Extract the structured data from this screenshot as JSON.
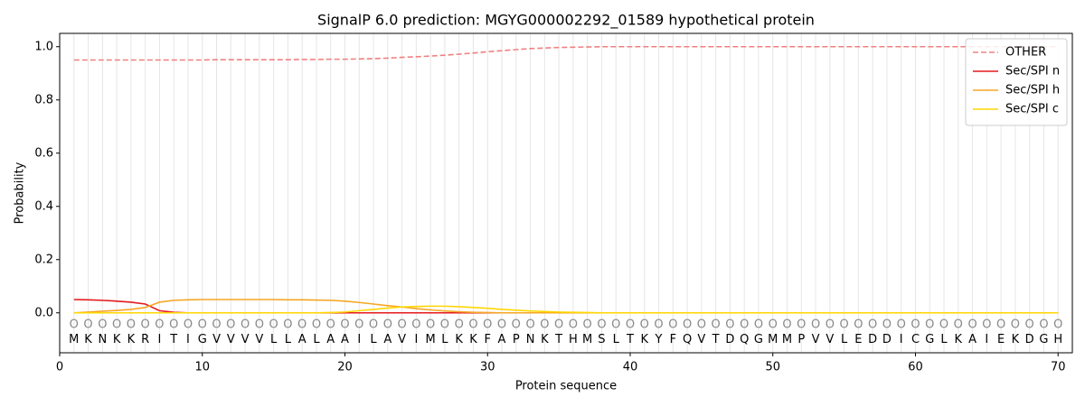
{
  "chart_data": {
    "type": "line",
    "title": "SignalP 6.0 prediction: MGYG000002292_01589 hypothetical protein",
    "xlabel": "Protein sequence",
    "ylabel": "Probability",
    "xlim": [
      0,
      71
    ],
    "ylim": [
      -0.15,
      1.05
    ],
    "xticks": [
      0,
      10,
      20,
      30,
      40,
      50,
      60,
      70
    ],
    "yticks": [
      {
        "value": 0,
        "label": "0.0"
      },
      {
        "value": 0.2,
        "label": "0.2"
      },
      {
        "value": 0.4,
        "label": "0.4"
      },
      {
        "value": 0.6,
        "label": "0.6"
      },
      {
        "value": 0.8,
        "label": "0.8"
      },
      {
        "value": 1,
        "label": "1.0"
      }
    ],
    "legend": "upper right",
    "xgrid": true,
    "x": [
      1,
      2,
      3,
      4,
      5,
      6,
      7,
      8,
      9,
      10,
      11,
      12,
      13,
      14,
      15,
      16,
      17,
      18,
      19,
      20,
      21,
      22,
      23,
      24,
      25,
      26,
      27,
      28,
      29,
      30,
      31,
      32,
      33,
      34,
      35,
      36,
      37,
      38,
      39,
      40,
      41,
      42,
      43,
      44,
      45,
      46,
      47,
      48,
      49,
      50,
      51,
      52,
      53,
      54,
      55,
      56,
      57,
      58,
      59,
      60,
      61,
      62,
      63,
      64,
      65,
      66,
      67,
      68,
      69,
      70
    ],
    "sequence": [
      "M",
      "K",
      "N",
      "K",
      "K",
      "R",
      "I",
      "T",
      "I",
      "G",
      "V",
      "V",
      "V",
      "V",
      "L",
      "L",
      "A",
      "L",
      "A",
      "A",
      "I",
      "L",
      "A",
      "V",
      "I",
      "M",
      "L",
      "K",
      "K",
      "F",
      "A",
      "P",
      "N",
      "K",
      "T",
      "H",
      "M",
      "S",
      "L",
      "T",
      "K",
      "Y",
      "F",
      "Q",
      "V",
      "T",
      "D",
      "Q",
      "G",
      "M",
      "M",
      "P",
      "V",
      "V",
      "L",
      "E",
      "D",
      "D",
      "I",
      "C",
      "G",
      "L",
      "K",
      "A",
      "I",
      "E",
      "K",
      "D",
      "G",
      "H"
    ],
    "region_labels": [
      "O",
      "O",
      "O",
      "O",
      "O",
      "O",
      "O",
      "O",
      "O",
      "O",
      "O",
      "O",
      "O",
      "O",
      "O",
      "O",
      "O",
      "O",
      "O",
      "O",
      "O",
      "O",
      "O",
      "O",
      "O",
      "O",
      "O",
      "O",
      "O",
      "O",
      "O",
      "O",
      "O",
      "O",
      "O",
      "O",
      "O",
      "O",
      "O",
      "O",
      "O",
      "O",
      "O",
      "O",
      "O",
      "O",
      "O",
      "O",
      "O",
      "O",
      "O",
      "O",
      "O",
      "O",
      "O",
      "O",
      "O",
      "O",
      "O",
      "O",
      "O",
      "O",
      "O",
      "O",
      "O",
      "O",
      "O",
      "O",
      "O",
      "O"
    ],
    "series": [
      {
        "name": "OTHER",
        "color": "#f08080",
        "dashed": true,
        "values": [
          0.95,
          0.95,
          0.95,
          0.95,
          0.95,
          0.95,
          0.95,
          0.95,
          0.95,
          0.95,
          0.951,
          0.951,
          0.951,
          0.951,
          0.951,
          0.951,
          0.952,
          0.952,
          0.953,
          0.953,
          0.954,
          0.955,
          0.957,
          0.96,
          0.962,
          0.965,
          0.968,
          0.972,
          0.976,
          0.981,
          0.985,
          0.989,
          0.993,
          0.995,
          0.997,
          0.998,
          0.999,
          1,
          1,
          1,
          1,
          1,
          1,
          1,
          1,
          1,
          1,
          1,
          1,
          1,
          1,
          1,
          1,
          1,
          1,
          1,
          1,
          1,
          1,
          1,
          1,
          1,
          1,
          1,
          1,
          1,
          1,
          1,
          1,
          1
        ]
      },
      {
        "name": "Sec/SPI n",
        "color": "#e31a1c",
        "dashed": false,
        "values": [
          0.05,
          0.049,
          0.047,
          0.044,
          0.04,
          0.033,
          0.008,
          0.002,
          0,
          0,
          0,
          0,
          0,
          0,
          0,
          0,
          0,
          0,
          0,
          0,
          0,
          0,
          0,
          0,
          0,
          0,
          0,
          0,
          0,
          0,
          0,
          0,
          0,
          0,
          0,
          0,
          0,
          0,
          0,
          0,
          0,
          0,
          0,
          0,
          0,
          0,
          0,
          0,
          0,
          0,
          0,
          0,
          0,
          0,
          0,
          0,
          0,
          0,
          0,
          0,
          0,
          0,
          0,
          0,
          0,
          0,
          0,
          0,
          0,
          0
        ]
      },
      {
        "name": "Sec/SPI h",
        "color": "#f5a623",
        "dashed": false,
        "values": [
          0,
          0.003,
          0.006,
          0.009,
          0.013,
          0.02,
          0.04,
          0.047,
          0.049,
          0.05,
          0.05,
          0.05,
          0.05,
          0.05,
          0.05,
          0.049,
          0.049,
          0.048,
          0.047,
          0.044,
          0.039,
          0.033,
          0.027,
          0.022,
          0.016,
          0.011,
          0.007,
          0.004,
          0.002,
          0.001,
          0,
          0,
          0,
          0,
          0,
          0,
          0,
          0,
          0,
          0,
          0,
          0,
          0,
          0,
          0,
          0,
          0,
          0,
          0,
          0,
          0,
          0,
          0,
          0,
          0,
          0,
          0,
          0,
          0,
          0,
          0,
          0,
          0,
          0,
          0,
          0,
          0,
          0,
          0,
          0
        ]
      },
      {
        "name": "Sec/SPI c",
        "color": "#ffd700",
        "dashed": false,
        "values": [
          0,
          0,
          0,
          0,
          0,
          0,
          0,
          0,
          0,
          0,
          0,
          0,
          0,
          0,
          0,
          0,
          0,
          0,
          0.001,
          0.003,
          0.008,
          0.013,
          0.018,
          0.022,
          0.024,
          0.025,
          0.025,
          0.023,
          0.02,
          0.017,
          0.013,
          0.01,
          0.007,
          0.005,
          0.003,
          0.002,
          0.001,
          0,
          0,
          0,
          0,
          0,
          0,
          0,
          0,
          0,
          0,
          0,
          0,
          0,
          0,
          0,
          0,
          0,
          0,
          0,
          0,
          0,
          0,
          0,
          0,
          0,
          0,
          0,
          0,
          0,
          0,
          0,
          0,
          0
        ]
      }
    ]
  }
}
